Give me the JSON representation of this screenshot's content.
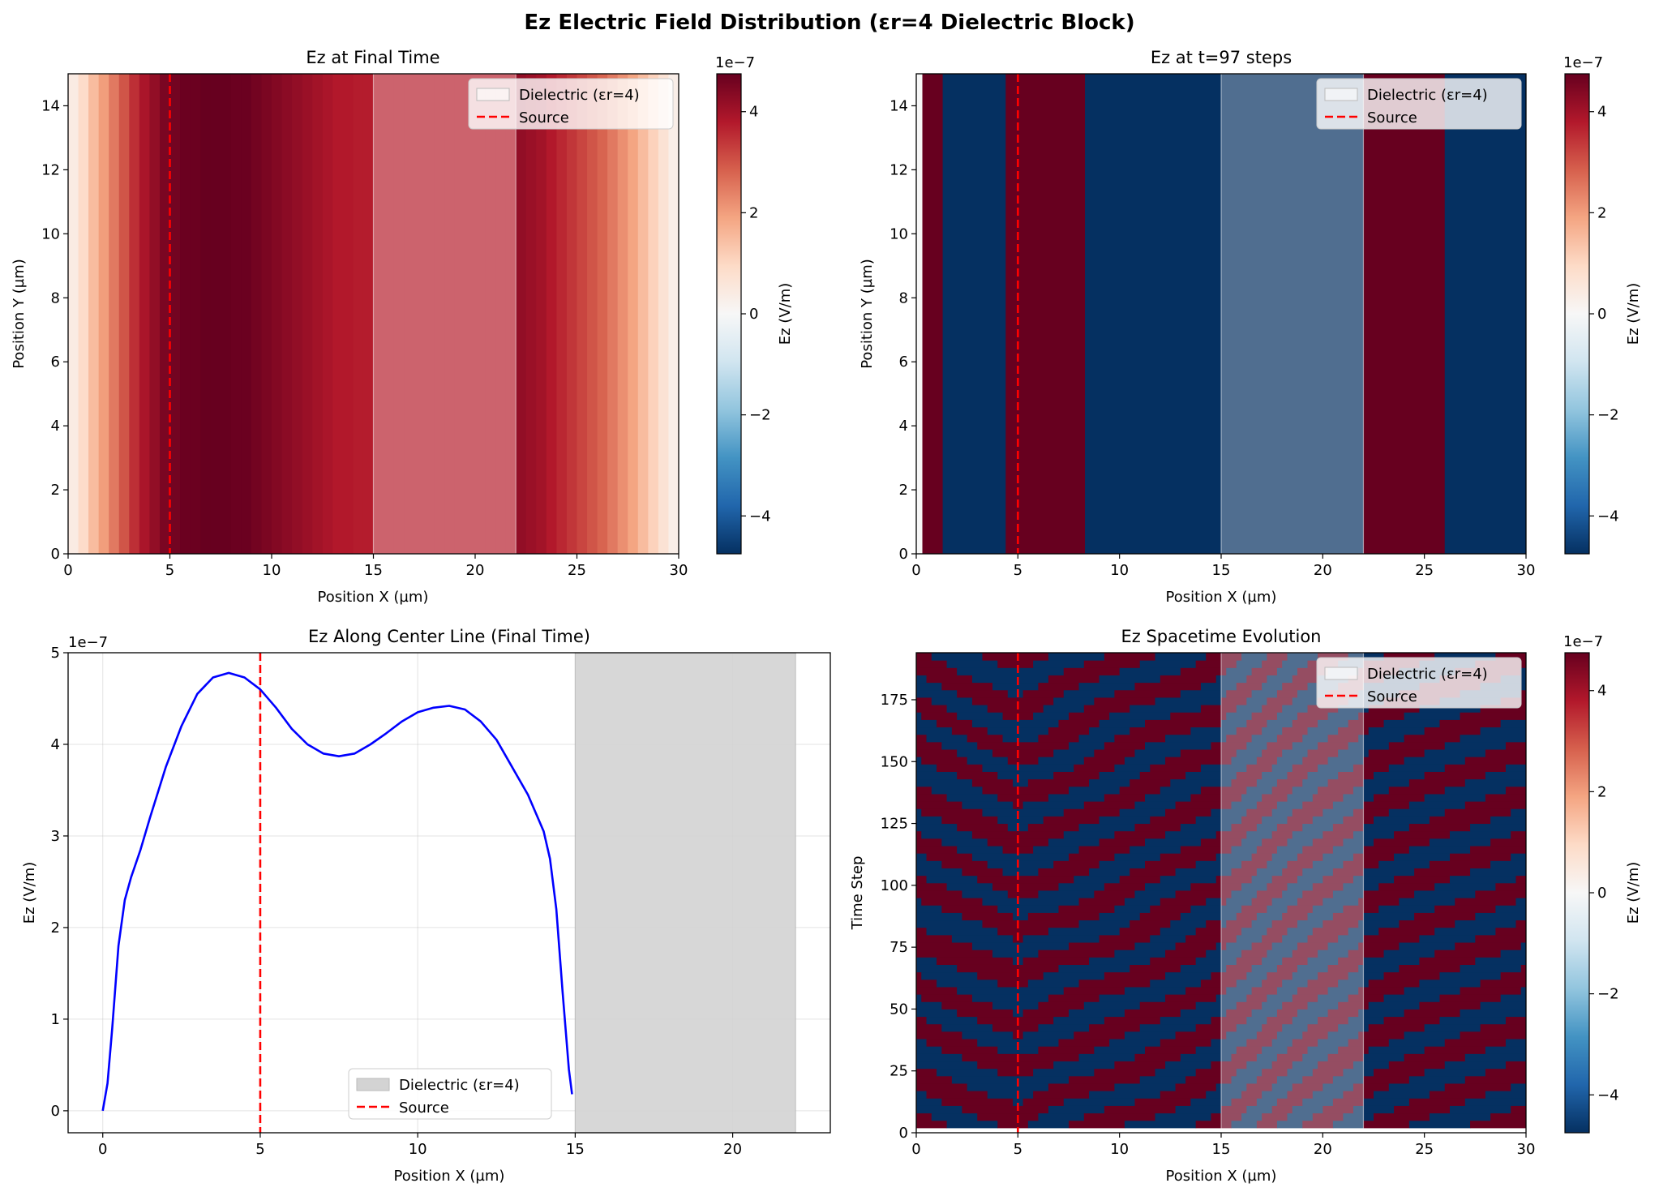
{
  "figure_title": "Ez Electric Field Distribution (εr=4 Dielectric Block)",
  "colors": {
    "colormap": "RdBu_r",
    "colormap_stops": [
      "#053061",
      "#2166ac",
      "#4393c3",
      "#92c5de",
      "#d1e5f0",
      "#f7f7f7",
      "#fddbc7",
      "#f4a582",
      "#d6604d",
      "#b2182b",
      "#67001f"
    ],
    "source_line": "#ff0000",
    "profile_line": "#0000ff",
    "dielectric_fill": "#d3d3d3"
  },
  "legend": {
    "dielectric": "Dielectric (εr=4)",
    "source": "Source"
  },
  "colorbar": {
    "label": "Ez (V/m)",
    "exponent": "1e−7",
    "ticks": [
      "−4",
      "−2",
      "0",
      "2",
      "4"
    ],
    "tick_values": [
      -4,
      -2,
      0,
      2,
      4
    ],
    "range": [
      -4.75,
      4.75
    ]
  },
  "chart_data": [
    {
      "type": "heatmap",
      "title": "Ez at Final Time",
      "xlabel": "Position X (µm)",
      "ylabel": "Position Y (µm)",
      "xlim": [
        0,
        30
      ],
      "ylim": [
        0,
        15
      ],
      "xticks": [
        0,
        5,
        10,
        15,
        20,
        25,
        30
      ],
      "yticks": [
        0,
        2,
        4,
        6,
        8,
        10,
        12,
        14
      ],
      "value_scale": "1e-7",
      "profile_x": [
        0,
        0.5,
        1,
        1.5,
        2,
        2.5,
        3,
        3.5,
        4,
        4.5,
        5,
        5.5,
        6,
        6.5,
        7,
        7.5,
        8,
        8.5,
        9,
        9.5,
        10,
        10.5,
        11,
        11.5,
        12,
        12.5,
        13,
        13.5,
        14,
        14.5,
        15,
        15.5,
        16,
        16.5,
        17,
        17.5,
        18,
        18.5,
        19,
        19.5,
        20,
        20.5,
        21,
        21.5,
        22,
        22.5,
        23,
        23.5,
        24,
        24.5,
        25,
        25.5,
        26,
        26.5,
        27,
        27.5,
        28,
        28.5,
        29,
        29.5
      ],
      "profile_ez": [
        0.4,
        0.9,
        1.5,
        2.0,
        2.5,
        3.0,
        3.5,
        3.9,
        4.2,
        4.5,
        4.6,
        4.7,
        4.7,
        4.75,
        4.75,
        4.75,
        4.7,
        4.7,
        4.6,
        4.5,
        4.4,
        4.3,
        4.2,
        4.1,
        4.0,
        3.9,
        3.8,
        3.8,
        3.75,
        3.75,
        3.7,
        3.7,
        3.7,
        3.7,
        3.7,
        3.7,
        3.7,
        3.7,
        3.7,
        3.7,
        3.7,
        3.7,
        3.7,
        3.7,
        4.2,
        4.1,
        4.0,
        3.8,
        3.6,
        3.4,
        3.2,
        3.0,
        2.8,
        2.5,
        2.2,
        1.9,
        1.5,
        1.1,
        0.7,
        0.3
      ],
      "dielectric_x": [
        15,
        22
      ],
      "source_x": 5
    },
    {
      "type": "heatmap",
      "title": "Ez at t=97 steps",
      "xlabel": "Position X (µm)",
      "ylabel": "Position Y (µm)",
      "xlim": [
        0,
        30
      ],
      "ylim": [
        0,
        15
      ],
      "xticks": [
        0,
        5,
        10,
        15,
        20,
        25,
        30
      ],
      "yticks": [
        0,
        2,
        4,
        6,
        8,
        10,
        12,
        14
      ],
      "value_scale": "1e-7",
      "bands": [
        {
          "x0": 0,
          "x1": 0.3,
          "ez": 0
        },
        {
          "x0": 0.3,
          "x1": 1.3,
          "ez": 4.75
        },
        {
          "x0": 1.3,
          "x1": 4.4,
          "ez": -4.75
        },
        {
          "x0": 4.4,
          "x1": 8.3,
          "ez": 4.75
        },
        {
          "x0": 8.3,
          "x1": 22,
          "ez": -4.75
        },
        {
          "x0": 22,
          "x1": 26,
          "ez": 4.75
        },
        {
          "x0": 26,
          "x1": 30,
          "ez": -4.75
        }
      ],
      "dielectric_x": [
        15,
        22
      ],
      "source_x": 5
    },
    {
      "type": "line",
      "title": "Ez Along Center Line (Final Time)",
      "xlabel": "Position X (µm)",
      "ylabel": "Ez (V/m)",
      "y_exponent": "1e−7",
      "xlim": [
        -1.1,
        23.1
      ],
      "ylim": [
        -0.24,
        5.0
      ],
      "xticks": [
        0,
        5,
        10,
        15,
        20
      ],
      "yticks": [
        0,
        1,
        2,
        3,
        4,
        5
      ],
      "grid": true,
      "legend_position": "lower center",
      "series": [
        {
          "x": [
            0,
            0.15,
            0.3,
            0.5,
            0.7,
            0.9,
            1.0,
            1.2,
            1.5,
            2.0,
            2.5,
            3.0,
            3.5,
            4.0,
            4.5,
            5.0,
            5.5,
            6.0,
            6.5,
            7.0,
            7.5,
            8.0,
            8.5,
            9.0,
            9.5,
            10.0,
            10.5,
            11.0,
            11.5,
            12.0,
            12.5,
            13.0,
            13.5,
            14.0,
            14.2,
            14.4,
            14.6,
            14.8,
            14.9
          ],
          "y": [
            0,
            0.3,
            0.9,
            1.8,
            2.3,
            2.55,
            2.65,
            2.85,
            3.2,
            3.75,
            4.2,
            4.55,
            4.73,
            4.78,
            4.73,
            4.6,
            4.4,
            4.17,
            4.0,
            3.9,
            3.87,
            3.9,
            4.0,
            4.12,
            4.25,
            4.35,
            4.4,
            4.42,
            4.38,
            4.25,
            4.05,
            3.75,
            3.45,
            3.05,
            2.75,
            2.2,
            1.3,
            0.45,
            0.18
          ]
        }
      ],
      "dielectric_x": [
        15,
        22
      ],
      "source_x": 5
    },
    {
      "type": "heatmap",
      "title": "Ez Spacetime Evolution",
      "xlabel": "Position X (µm)",
      "ylabel": "Time Step",
      "xlim": [
        0,
        30
      ],
      "ylim": [
        0,
        194
      ],
      "xticks": [
        0,
        5,
        10,
        15,
        20,
        25,
        30
      ],
      "yticks": [
        0,
        25,
        50,
        75,
        100,
        125,
        150,
        175
      ],
      "value_scale": "1e-7",
      "dielectric_x": [
        15,
        22
      ],
      "source_x": 5
    }
  ]
}
